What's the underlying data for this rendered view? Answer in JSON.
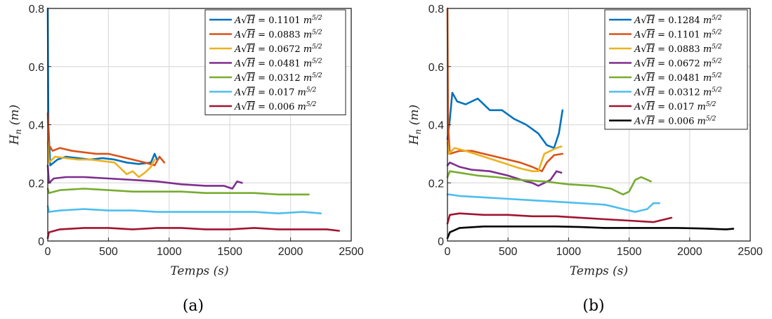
{
  "chart_data": [
    {
      "type": "line",
      "caption": "(a)",
      "xlabel": "Temps (s)",
      "ylabel": "H_n (m)",
      "xlim": [
        0,
        2500
      ],
      "ylim": [
        0,
        0.8
      ],
      "xticks": [
        "0",
        "500",
        "1000",
        "1500",
        "2000",
        "2500"
      ],
      "yticks": [
        "0",
        "0.2",
        "0.4",
        "0.6",
        "0.8"
      ],
      "grid": true,
      "legend_position": "top-right",
      "series": [
        {
          "name": "A√H = 0.1101 m^5/2",
          "color": "#0072BD",
          "points": [
            [
              0,
              0.8
            ],
            [
              5,
              0.4
            ],
            [
              20,
              0.26
            ],
            [
              80,
              0.28
            ],
            [
              150,
              0.29
            ],
            [
              250,
              0.285
            ],
            [
              350,
              0.28
            ],
            [
              450,
              0.285
            ],
            [
              550,
              0.28
            ],
            [
              650,
              0.27
            ],
            [
              750,
              0.265
            ],
            [
              850,
              0.27
            ],
            [
              880,
              0.3
            ],
            [
              900,
              0.28
            ]
          ]
        },
        {
          "name": "A√H = 0.0883 m^5/2",
          "color": "#D95319",
          "points": [
            [
              0,
              0.44
            ],
            [
              10,
              0.33
            ],
            [
              40,
              0.31
            ],
            [
              100,
              0.32
            ],
            [
              200,
              0.31
            ],
            [
              300,
              0.305
            ],
            [
              400,
              0.3
            ],
            [
              500,
              0.3
            ],
            [
              600,
              0.29
            ],
            [
              700,
              0.28
            ],
            [
              800,
              0.27
            ],
            [
              880,
              0.26
            ],
            [
              920,
              0.29
            ],
            [
              960,
              0.27
            ]
          ]
        },
        {
          "name": "A√H = 0.0672 m^5/2",
          "color": "#EDB120",
          "points": [
            [
              0,
              0.34
            ],
            [
              10,
              0.27
            ],
            [
              60,
              0.29
            ],
            [
              150,
              0.285
            ],
            [
              250,
              0.28
            ],
            [
              350,
              0.28
            ],
            [
              450,
              0.275
            ],
            [
              550,
              0.27
            ],
            [
              600,
              0.25
            ],
            [
              650,
              0.23
            ],
            [
              700,
              0.24
            ],
            [
              750,
              0.22
            ],
            [
              800,
              0.235
            ],
            [
              850,
              0.255
            ],
            [
              880,
              0.28
            ]
          ]
        },
        {
          "name": "A√H = 0.0481 m^5/2",
          "color": "#7E2F8E",
          "points": [
            [
              0,
              0.26
            ],
            [
              10,
              0.2
            ],
            [
              50,
              0.215
            ],
            [
              150,
              0.22
            ],
            [
              300,
              0.22
            ],
            [
              500,
              0.215
            ],
            [
              700,
              0.21
            ],
            [
              900,
              0.205
            ],
            [
              1100,
              0.195
            ],
            [
              1300,
              0.19
            ],
            [
              1450,
              0.19
            ],
            [
              1520,
              0.18
            ],
            [
              1560,
              0.205
            ],
            [
              1600,
              0.2
            ]
          ]
        },
        {
          "name": "A√H = 0.0312 m^5/2",
          "color": "#77AC30",
          "points": [
            [
              0,
              0.18
            ],
            [
              10,
              0.165
            ],
            [
              100,
              0.175
            ],
            [
              300,
              0.18
            ],
            [
              500,
              0.175
            ],
            [
              700,
              0.17
            ],
            [
              900,
              0.17
            ],
            [
              1100,
              0.17
            ],
            [
              1300,
              0.165
            ],
            [
              1500,
              0.165
            ],
            [
              1700,
              0.165
            ],
            [
              1900,
              0.16
            ],
            [
              2150,
              0.16
            ]
          ]
        },
        {
          "name": "A√H = 0.017 m^5/2",
          "color": "#4DBEEE",
          "points": [
            [
              0,
              0.12
            ],
            [
              10,
              0.1
            ],
            [
              100,
              0.105
            ],
            [
              300,
              0.11
            ],
            [
              500,
              0.105
            ],
            [
              700,
              0.105
            ],
            [
              900,
              0.1
            ],
            [
              1100,
              0.1
            ],
            [
              1300,
              0.1
            ],
            [
              1500,
              0.1
            ],
            [
              1700,
              0.1
            ],
            [
              1900,
              0.095
            ],
            [
              2100,
              0.1
            ],
            [
              2250,
              0.095
            ]
          ]
        },
        {
          "name": "A√H = 0.006 m^5/2",
          "color": "#A2142F",
          "points": [
            [
              0,
              0.01
            ],
            [
              10,
              0.03
            ],
            [
              100,
              0.04
            ],
            [
              300,
              0.045
            ],
            [
              500,
              0.045
            ],
            [
              700,
              0.04
            ],
            [
              900,
              0.045
            ],
            [
              1100,
              0.045
            ],
            [
              1300,
              0.04
            ],
            [
              1500,
              0.04
            ],
            [
              1700,
              0.045
            ],
            [
              1900,
              0.04
            ],
            [
              2100,
              0.04
            ],
            [
              2300,
              0.04
            ],
            [
              2400,
              0.035
            ]
          ]
        }
      ]
    },
    {
      "type": "line",
      "caption": "(b)",
      "xlabel": "Temps (s)",
      "ylabel": "H_n (m)",
      "xlim": [
        0,
        2500
      ],
      "ylim": [
        0,
        0.8
      ],
      "xticks": [
        "0",
        "500",
        "1000",
        "1500",
        "2000",
        "2500"
      ],
      "yticks": [
        "0",
        "0.2",
        "0.4",
        "0.6",
        "0.8"
      ],
      "grid": true,
      "legend_position": "top-right",
      "series": [
        {
          "name": "A√H = 0.1284 m^5/2",
          "color": "#0072BD",
          "points": [
            [
              0,
              0.35
            ],
            [
              20,
              0.42
            ],
            [
              40,
              0.51
            ],
            [
              80,
              0.48
            ],
            [
              150,
              0.47
            ],
            [
              250,
              0.49
            ],
            [
              350,
              0.45
            ],
            [
              450,
              0.45
            ],
            [
              550,
              0.42
            ],
            [
              650,
              0.4
            ],
            [
              750,
              0.37
            ],
            [
              820,
              0.33
            ],
            [
              880,
              0.32
            ],
            [
              920,
              0.37
            ],
            [
              950,
              0.45
            ]
          ]
        },
        {
          "name": "A√H = 0.1101 m^5/2",
          "color": "#D95319",
          "points": [
            [
              0,
              0.8
            ],
            [
              5,
              0.4
            ],
            [
              20,
              0.3
            ],
            [
              100,
              0.31
            ],
            [
              200,
              0.31
            ],
            [
              300,
              0.3
            ],
            [
              400,
              0.29
            ],
            [
              500,
              0.28
            ],
            [
              600,
              0.27
            ],
            [
              700,
              0.255
            ],
            [
              780,
              0.24
            ],
            [
              820,
              0.27
            ],
            [
              880,
              0.295
            ],
            [
              950,
              0.3
            ]
          ]
        },
        {
          "name": "A√H = 0.0883 m^5/2",
          "color": "#EDB120",
          "points": [
            [
              0,
              0.34
            ],
            [
              10,
              0.3
            ],
            [
              60,
              0.32
            ],
            [
              150,
              0.31
            ],
            [
              300,
              0.29
            ],
            [
              450,
              0.27
            ],
            [
              600,
              0.25
            ],
            [
              700,
              0.24
            ],
            [
              750,
              0.24
            ],
            [
              800,
              0.3
            ],
            [
              900,
              0.32
            ],
            [
              940,
              0.325
            ]
          ]
        },
        {
          "name": "A√H = 0.0672 m^5/2",
          "color": "#7E2F8E",
          "points": [
            [
              0,
              0.26
            ],
            [
              20,
              0.27
            ],
            [
              100,
              0.255
            ],
            [
              200,
              0.245
            ],
            [
              350,
              0.24
            ],
            [
              500,
              0.225
            ],
            [
              650,
              0.205
            ],
            [
              700,
              0.2
            ],
            [
              750,
              0.19
            ],
            [
              800,
              0.2
            ],
            [
              850,
              0.21
            ],
            [
              900,
              0.24
            ],
            [
              940,
              0.235
            ]
          ]
        },
        {
          "name": "A√H = 0.0481 m^5/2",
          "color": "#77AC30",
          "points": [
            [
              0,
              0.22
            ],
            [
              20,
              0.24
            ],
            [
              100,
              0.235
            ],
            [
              250,
              0.225
            ],
            [
              400,
              0.22
            ],
            [
              600,
              0.21
            ],
            [
              800,
              0.205
            ],
            [
              1000,
              0.195
            ],
            [
              1200,
              0.19
            ],
            [
              1350,
              0.18
            ],
            [
              1450,
              0.16
            ],
            [
              1500,
              0.17
            ],
            [
              1550,
              0.21
            ],
            [
              1600,
              0.22
            ],
            [
              1680,
              0.205
            ]
          ]
        },
        {
          "name": "A√H = 0.0312 m^5/2",
          "color": "#4DBEEE",
          "points": [
            [
              0,
              0.16
            ],
            [
              20,
              0.16
            ],
            [
              100,
              0.155
            ],
            [
              300,
              0.15
            ],
            [
              500,
              0.145
            ],
            [
              700,
              0.14
            ],
            [
              900,
              0.135
            ],
            [
              1100,
              0.13
            ],
            [
              1300,
              0.125
            ],
            [
              1450,
              0.11
            ],
            [
              1550,
              0.1
            ],
            [
              1650,
              0.11
            ],
            [
              1700,
              0.13
            ],
            [
              1750,
              0.13
            ]
          ]
        },
        {
          "name": "A√H = 0.017 m^5/2",
          "color": "#A2142F",
          "points": [
            [
              0,
              0.06
            ],
            [
              20,
              0.09
            ],
            [
              100,
              0.095
            ],
            [
              300,
              0.09
            ],
            [
              500,
              0.09
            ],
            [
              700,
              0.085
            ],
            [
              900,
              0.085
            ],
            [
              1100,
              0.08
            ],
            [
              1300,
              0.075
            ],
            [
              1500,
              0.07
            ],
            [
              1700,
              0.065
            ],
            [
              1800,
              0.075
            ],
            [
              1850,
              0.08
            ]
          ]
        },
        {
          "name": "A√H = 0.006 m^5/2",
          "color": "#000000",
          "points": [
            [
              0,
              0.01
            ],
            [
              20,
              0.03
            ],
            [
              100,
              0.045
            ],
            [
              300,
              0.05
            ],
            [
              500,
              0.05
            ],
            [
              700,
              0.05
            ],
            [
              900,
              0.05
            ],
            [
              1100,
              0.048
            ],
            [
              1300,
              0.045
            ],
            [
              1500,
              0.045
            ],
            [
              1700,
              0.045
            ],
            [
              1900,
              0.045
            ],
            [
              2100,
              0.043
            ],
            [
              2300,
              0.04
            ],
            [
              2360,
              0.042
            ]
          ]
        }
      ]
    }
  ]
}
